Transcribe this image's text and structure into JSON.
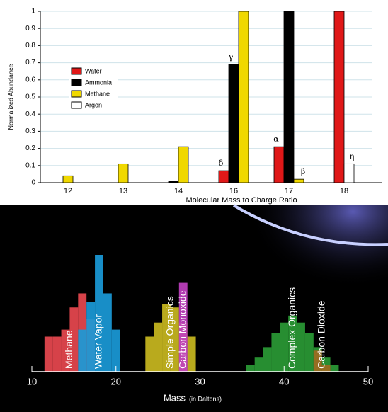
{
  "chart_data": [
    {
      "type": "bar",
      "y_label": "Normalized Abundance",
      "x_label": "Molecular Mass to Charge Ratio",
      "categories": [
        "12",
        "13",
        "14",
        "16",
        "17",
        "18"
      ],
      "series": [
        {
          "name": "Water",
          "color": "#e01818",
          "values": [
            null,
            null,
            null,
            0.07,
            0.21,
            1.0
          ]
        },
        {
          "name": "Ammonia",
          "color": "#000000",
          "values": [
            null,
            null,
            0.01,
            0.69,
            1.0,
            null
          ]
        },
        {
          "name": "Methane",
          "color": "#f0d800",
          "values": [
            0.04,
            0.11,
            0.21,
            1.0,
            0.02,
            null
          ]
        },
        {
          "name": "Argon",
          "color": "#ffffff",
          "values": [
            null,
            null,
            null,
            null,
            null,
            0.11
          ]
        }
      ],
      "ylim": [
        0,
        1
      ],
      "yticks": [
        0,
        0.1,
        0.2,
        0.3,
        0.4,
        0.5,
        0.6,
        0.7,
        0.8,
        0.9,
        1
      ],
      "grid": true,
      "annotations": [
        "δ",
        "γ",
        "α",
        "β",
        "η"
      ]
    },
    {
      "type": "column",
      "x_label": "Mass",
      "x_label_note": "(in Daltons)",
      "xlim": [
        10,
        50
      ],
      "xticks": [
        10,
        20,
        30,
        40,
        50
      ],
      "series": [
        {
          "name": "Methane",
          "color": "#e8484f",
          "x": [
            12,
            13,
            14,
            15,
            16,
            17
          ],
          "values": [
            0.3,
            0.3,
            0.36,
            0.55,
            0.67,
            0.45
          ]
        },
        {
          "name": "Water Vapor",
          "color": "#1a9ad8",
          "x": [
            16,
            17,
            18,
            19,
            20
          ],
          "values": [
            0.36,
            0.6,
            1.0,
            0.67,
            0.36
          ]
        },
        {
          "name": "Simple Organics",
          "color": "#c9b820",
          "x": [
            24,
            25,
            26,
            27,
            28,
            29
          ],
          "values": [
            0.3,
            0.42,
            0.58,
            0.55,
            0.42,
            0.3
          ]
        },
        {
          "name": "Carbon Monoxide",
          "color": "#c040c0",
          "x": [
            28
          ],
          "values": [
            0.76
          ]
        },
        {
          "name": "Complex Organics",
          "color": "#2a9a35",
          "x": [
            36,
            37,
            38,
            39,
            40,
            41,
            42,
            43,
            44,
            45,
            46
          ],
          "values": [
            0.06,
            0.12,
            0.21,
            0.33,
            0.42,
            0.48,
            0.42,
            0.33,
            0.21,
            0.12,
            0.06
          ]
        },
        {
          "name": "Carbon Dioxide",
          "color": "#a06a20",
          "x": [
            44,
            45
          ],
          "values": [
            0.18,
            0.06
          ]
        }
      ]
    }
  ]
}
